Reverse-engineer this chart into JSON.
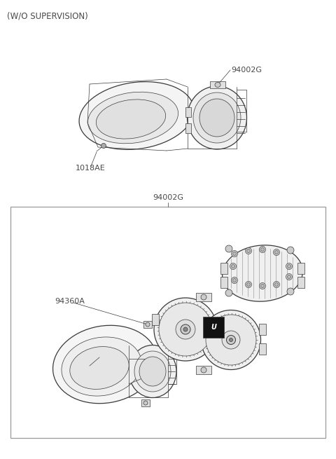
{
  "title": "(W/O SUPERVISION)",
  "bg_color": "#ffffff",
  "label_color": "#4a4a4a",
  "line_color": "#3a3a3a",
  "border_color": "#888888",
  "part1_label": "94002G",
  "part2_label": "1018AE",
  "part3_label": "94002G",
  "part4_label": "94360A",
  "title_fontsize": 8.5,
  "label_fontsize": 8.0,
  "fig_width": 4.8,
  "fig_height": 6.55,
  "dpi": 100
}
